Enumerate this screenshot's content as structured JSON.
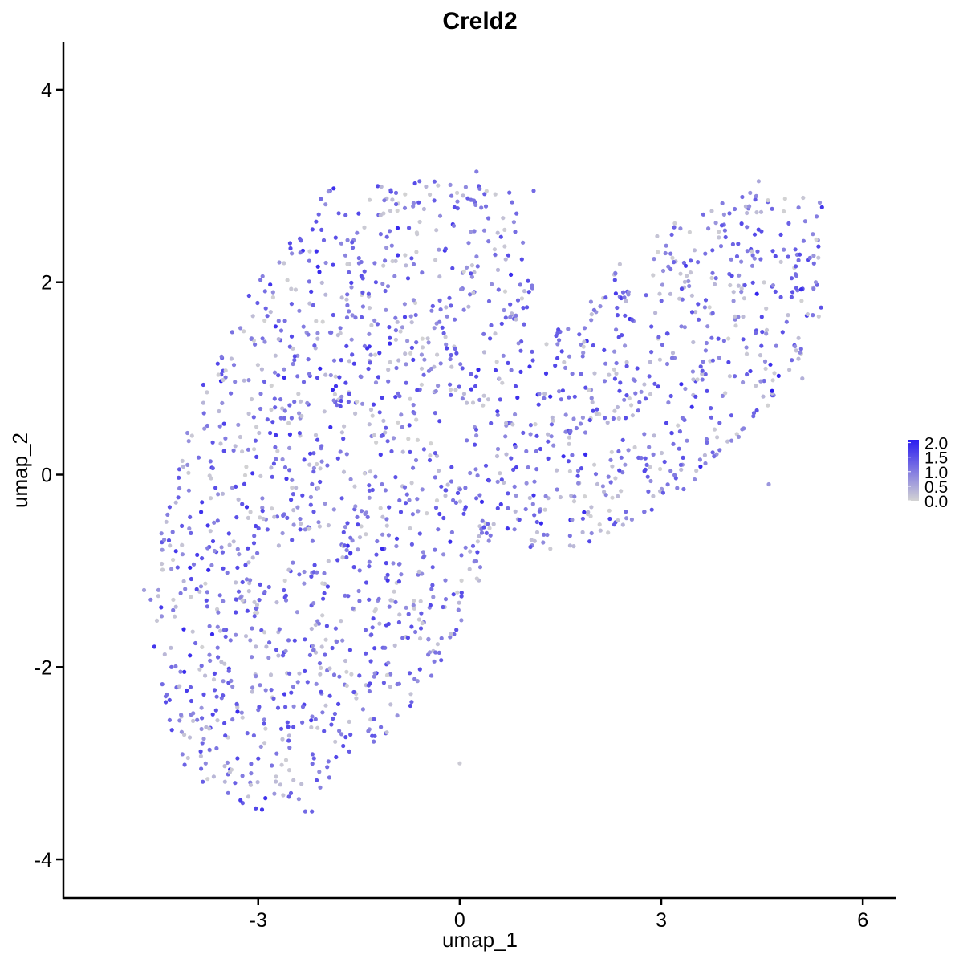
{
  "chart_data": {
    "type": "scatter",
    "title": "Creld2",
    "xlabel": "umap_1",
    "ylabel": "umap_2",
    "xlim": [
      -5.9,
      6.5
    ],
    "ylim": [
      -4.4,
      4.5
    ],
    "x_ticks": [
      -3,
      0,
      3,
      6
    ],
    "y_ticks": [
      -4,
      -2,
      0,
      2,
      4
    ],
    "x_tick_labels": [
      "-3",
      "0",
      "3",
      "6"
    ],
    "y_tick_labels": [
      "-4",
      "-2",
      "0",
      "2",
      "4"
    ],
    "grid": false,
    "legend": {
      "placement": "right",
      "type": "colorbar",
      "min": 0.0,
      "max": 2.1,
      "ticks": [
        0.0,
        0.5,
        1.0,
        1.5,
        2.0
      ],
      "tick_labels": [
        "0.0",
        "0.5",
        "1.0",
        "1.5",
        "2.0"
      ],
      "low_color": "#d3d3d3",
      "high_color": "#2b1cf0"
    },
    "point_color_low": "#d3d3d3",
    "point_color_high": "#2b1cf0",
    "point_count_approx": 2000,
    "points_sample": [
      {
        "x": -4.7,
        "y": -1.2,
        "expr": 0.6
      },
      {
        "x": -4.6,
        "y": -1.3,
        "expr": 1.0
      },
      {
        "x": -4.3,
        "y": -1.8,
        "expr": 0.3
      },
      {
        "x": -4.1,
        "y": -2.05,
        "expr": 1.9
      },
      {
        "x": -3.0,
        "y": -2.95,
        "expr": 1.5
      },
      {
        "x": -2.3,
        "y": -3.5,
        "expr": 1.2
      },
      {
        "x": -2.2,
        "y": -3.5,
        "expr": 1.3
      },
      {
        "x": 0.25,
        "y": 3.15,
        "expr": 1.0
      },
      {
        "x": 1.1,
        "y": 2.95,
        "expr": 1.2
      },
      {
        "x": 4.45,
        "y": 3.05,
        "expr": 0.5
      },
      {
        "x": 4.65,
        "y": 0.87,
        "expr": 2.1
      },
      {
        "x": 5.3,
        "y": 2.0,
        "expr": 0.8
      },
      {
        "x": 5.1,
        "y": 1.0,
        "expr": 0.4
      },
      {
        "x": 4.6,
        "y": -0.1,
        "expr": 0.7
      },
      {
        "x": 0.0,
        "y": -3.0,
        "expr": 0.1
      }
    ]
  }
}
